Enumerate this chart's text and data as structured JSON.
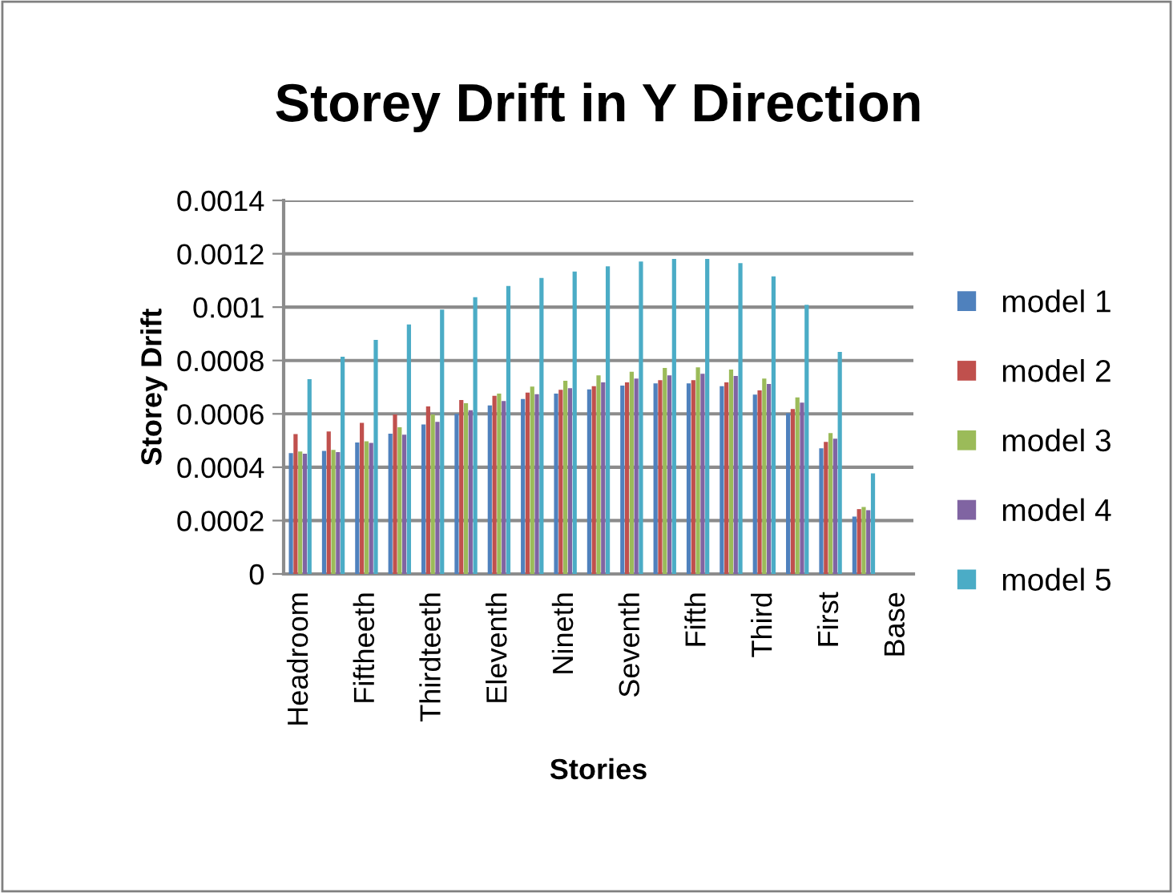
{
  "chart_data": {
    "type": "bar",
    "title": "Storey Drift in Y Direction",
    "xlabel": "Stories",
    "ylabel": "Storey Drift",
    "categories": [
      "Headroom",
      null,
      "Fiftheeth",
      null,
      "Thirdteeth",
      null,
      "Eleventh",
      null,
      "Nineth",
      null,
      "Seventh",
      null,
      "Fifth",
      null,
      "Third",
      null,
      "First",
      null,
      "Base"
    ],
    "series": [
      {
        "name": "model 1",
        "color": "#4f81bd",
        "values": [
          0.000453,
          0.000461,
          0.000493,
          0.000526,
          0.00056,
          0.0006,
          0.000632,
          0.000656,
          0.000676,
          0.000692,
          0.000706,
          0.000714,
          0.000714,
          0.000704,
          0.000672,
          0.000602,
          0.000471,
          0.000215,
          0
        ]
      },
      {
        "name": "model 2",
        "color": "#c0504d",
        "values": [
          0.000524,
          0.000534,
          0.000566,
          0.000598,
          0.000628,
          0.000652,
          0.000668,
          0.00068,
          0.00069,
          0.000704,
          0.000718,
          0.000726,
          0.000726,
          0.000718,
          0.000688,
          0.000618,
          0.000495,
          0.000243,
          0
        ]
      },
      {
        "name": "model 3",
        "color": "#9bbb59",
        "values": [
          0.000459,
          0.000465,
          0.000497,
          0.00055,
          0.000598,
          0.00064,
          0.000676,
          0.000702,
          0.000724,
          0.000744,
          0.000758,
          0.000772,
          0.000774,
          0.000766,
          0.000732,
          0.000662,
          0.000528,
          0.000251,
          0
        ]
      },
      {
        "name": "model 4",
        "color": "#8064a2",
        "values": [
          0.000451,
          0.000457,
          0.000491,
          0.000522,
          0.00057,
          0.000614,
          0.000648,
          0.000674,
          0.000696,
          0.000718,
          0.000732,
          0.000744,
          0.00075,
          0.000742,
          0.000712,
          0.000642,
          0.000507,
          0.000239,
          0
        ]
      },
      {
        "name": "model 5",
        "color": "#4bacc6",
        "values": [
          0.00073,
          0.000814,
          0.000877,
          0.000935,
          0.000991,
          0.001037,
          0.001079,
          0.001109,
          0.001133,
          0.001153,
          0.001171,
          0.001181,
          0.001181,
          0.001165,
          0.001115,
          0.001009,
          0.000832,
          0.000377,
          0
        ]
      }
    ],
    "ylim": [
      0,
      0.0014
    ],
    "yticks": [
      0,
      0.0002,
      0.0004,
      0.0006,
      0.0008,
      0.001,
      0.0012,
      0.0014
    ],
    "grid": "y",
    "legend": "right"
  }
}
